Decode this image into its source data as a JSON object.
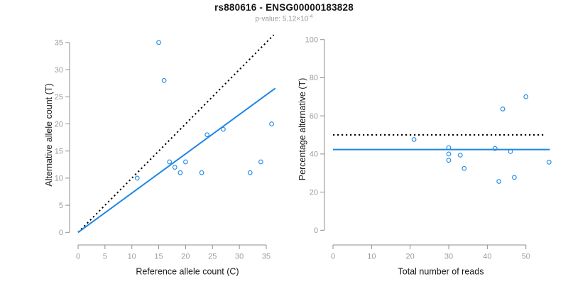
{
  "header": {
    "title": "rs880616 - ENSG00000183828",
    "p_value_label": "p-value: ",
    "p_value_base": "5.12×10",
    "p_value_exponent": "-4"
  },
  "colors": {
    "accent_blue": "#1e87e5",
    "line_black": "#000000",
    "axis_gray": "#8f8f8f",
    "tick_label_gray": "#9b9b9b",
    "axis_title_color": "#1a1a1a"
  },
  "chart_data": [
    {
      "id": "allele-counts-scatter",
      "type": "scatter",
      "xlabel": "Reference allele count (C)",
      "ylabel": "Alternative allele count (T)",
      "x_ticks": [
        0,
        5,
        10,
        15,
        20,
        25,
        30,
        35
      ],
      "y_ticks": [
        0,
        5,
        10,
        15,
        20,
        25,
        30,
        35
      ],
      "xlim": [
        0,
        36.7
      ],
      "ylim": [
        0,
        35
      ],
      "grid": false,
      "legend": null,
      "points": [
        {
          "x": 11,
          "y": 10
        },
        {
          "x": 15,
          "y": 35
        },
        {
          "x": 16,
          "y": 28
        },
        {
          "x": 17,
          "y": 13
        },
        {
          "x": 18,
          "y": 12
        },
        {
          "x": 19,
          "y": 11
        },
        {
          "x": 20,
          "y": 13
        },
        {
          "x": 23,
          "y": 11
        },
        {
          "x": 24,
          "y": 18
        },
        {
          "x": 27,
          "y": 19
        },
        {
          "x": 32,
          "y": 11
        },
        {
          "x": 34,
          "y": 13
        },
        {
          "x": 36,
          "y": 20
        }
      ],
      "lines": [
        {
          "name": "identity-line",
          "slope": 1,
          "intercept": 0,
          "x_range": [
            0,
            36.4
          ],
          "style": "dotted",
          "color": "#000000"
        },
        {
          "name": "fit-line",
          "slope": 0.724,
          "intercept": 0,
          "x_range": [
            0,
            36.7
          ],
          "style": "solid",
          "color": "#1e87e5"
        }
      ]
    },
    {
      "id": "percentage-alternative-scatter",
      "type": "scatter",
      "xlabel": "Total number of reads",
      "ylabel": "Percentage alternative (T)",
      "x_ticks": [
        0,
        10,
        20,
        30,
        40,
        50
      ],
      "y_ticks": [
        0,
        20,
        40,
        60,
        80,
        100
      ],
      "xlim": [
        0,
        56.2
      ],
      "ylim": [
        0,
        100
      ],
      "grid": false,
      "legend": null,
      "points": [
        {
          "x": 21,
          "y": 47.6
        },
        {
          "x": 30,
          "y": 43.3
        },
        {
          "x": 30,
          "y": 40
        },
        {
          "x": 30,
          "y": 36.7
        },
        {
          "x": 33,
          "y": 39.4
        },
        {
          "x": 34,
          "y": 32.4
        },
        {
          "x": 42,
          "y": 42.9
        },
        {
          "x": 43,
          "y": 25.6
        },
        {
          "x": 44,
          "y": 63.6
        },
        {
          "x": 46,
          "y": 41.3
        },
        {
          "x": 47,
          "y": 27.7
        },
        {
          "x": 50,
          "y": 70
        },
        {
          "x": 56,
          "y": 35.7
        }
      ],
      "lines": [
        {
          "name": "null-50pct-line",
          "h": 50,
          "x_range": [
            0,
            55
          ],
          "style": "dotted",
          "color": "#000000"
        },
        {
          "name": "fit-line",
          "h": 42.3,
          "x_range": [
            0,
            56.2
          ],
          "style": "solid",
          "color": "#1e87e5"
        }
      ]
    }
  ]
}
